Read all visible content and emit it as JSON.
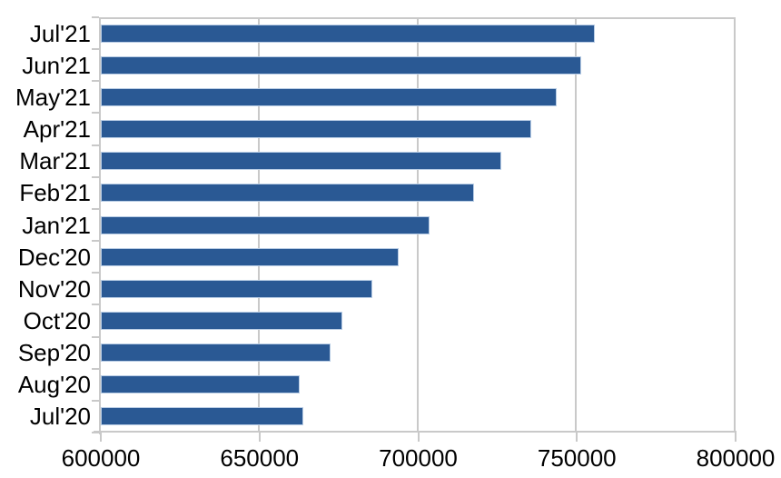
{
  "chart_data": {
    "type": "bar",
    "orientation": "horizontal",
    "title": "",
    "xlabel": "",
    "ylabel": "",
    "categories": [
      "Jul'21",
      "Jun'21",
      "May'21",
      "Apr'21",
      "Mar'21",
      "Feb'21",
      "Jan'21",
      "Dec'20",
      "Nov'20",
      "Oct'20",
      "Sep'20",
      "Aug'20",
      "Jul'20"
    ],
    "values": [
      755700,
      751300,
      743500,
      735700,
      726300,
      717500,
      703600,
      693800,
      685500,
      676000,
      672400,
      662700,
      663800
    ],
    "xlim": [
      600000,
      800000
    ],
    "x_ticks": [
      600000,
      650000,
      700000,
      750000,
      800000
    ],
    "x_tick_labels": [
      "600000",
      "650000",
      "700000",
      "750000",
      "800000"
    ],
    "grid": "vertical-only",
    "legend": "none",
    "colors": {
      "bar_fill": "#2A5994",
      "bar_border": "#B9CDE5",
      "axis_line": "#C9C9C9",
      "gridline": "#C9C9C9",
      "tick_label": "#000000",
      "background": "#FFFFFF"
    }
  }
}
